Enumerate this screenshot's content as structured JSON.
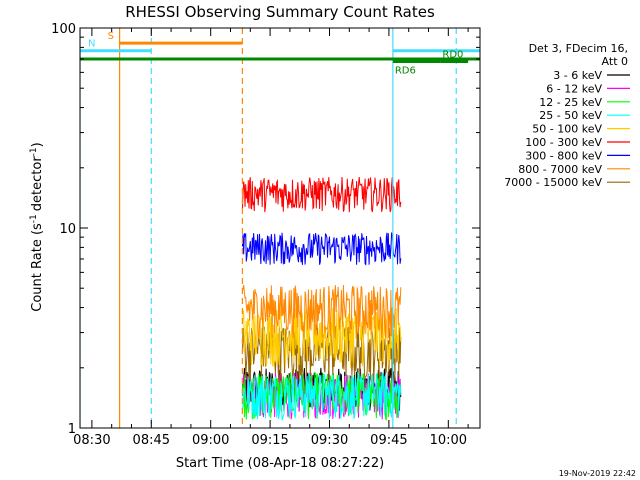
{
  "chart_data": {
    "type": "line",
    "title": "RHESSI Observing Summary Count Rates",
    "xlabel": "Start Time (08-Apr-18 08:27:22)",
    "ylabel": "Count Rate (s",
    "ylabel_sup": "-1",
    "ylabel_rest": "detector",
    "ylabel_end": ")",
    "yscale": "log",
    "ylim": [
      1,
      100
    ],
    "xlim": [
      "08:27",
      "10:08"
    ],
    "x_ticks": [
      "08:30",
      "08:45",
      "09:00",
      "09:15",
      "09:30",
      "09:45",
      "10:00"
    ],
    "y_ticks": [
      "1",
      "10",
      "100"
    ],
    "legend_position": "top-right",
    "legend_title": [
      "Det 3, FDecim 16,",
      "Att 0"
    ],
    "series": [
      {
        "name": "3 - 6 keV",
        "color": "#000000",
        "level": 1.6,
        "spread": 0.4,
        "start": "09:08",
        "end": "09:48"
      },
      {
        "name": "6 - 12 keV",
        "color": "#ff00ff",
        "level": 1.5,
        "spread": 0.4,
        "start": "09:08",
        "end": "09:48"
      },
      {
        "name": "12 - 25 keV",
        "color": "#00ff00",
        "level": 1.5,
        "spread": 0.4,
        "start": "09:08",
        "end": "09:48"
      },
      {
        "name": "25 - 50 keV",
        "color": "#00ffff",
        "level": 1.5,
        "spread": 0.4,
        "start": "09:08",
        "end": "09:48"
      },
      {
        "name": "50 - 100 keV",
        "color": "#ffcc00",
        "level": 3.0,
        "spread": 1.0,
        "start": "09:08",
        "end": "09:48"
      },
      {
        "name": "100 - 300 keV",
        "color": "#ff0000",
        "level": 15,
        "spread": 3,
        "start": "09:08",
        "end": "09:48"
      },
      {
        "name": "300 - 800 keV",
        "color": "#0000ff",
        "level": 8,
        "spread": 1.5,
        "start": "09:08",
        "end": "09:48"
      },
      {
        "name": "800 - 7000 keV",
        "color": "#ff8800",
        "level": 4,
        "spread": 1.2,
        "start": "09:08",
        "end": "09:48"
      },
      {
        "name": "7000 - 15000 keV",
        "color": "#996600",
        "level": 2.5,
        "spread": 0.8,
        "start": "09:08",
        "end": "09:48"
      }
    ],
    "intervals": [
      {
        "label": "S",
        "color": "#ff8800",
        "start": "08:37",
        "end": "09:08",
        "y": 84
      },
      {
        "label": "N",
        "color": "#44ddff",
        "start": "08:27",
        "end": "08:45",
        "y": 77
      },
      {
        "label": "",
        "color": "#44ddff",
        "start": "09:46",
        "end": "10:08",
        "y": 77
      },
      {
        "label": "",
        "color": "#008800",
        "start": "08:27",
        "end": "10:08",
        "y": 70
      },
      {
        "label": "RD0",
        "color": "#008800",
        "start": "09:58",
        "end": "10:05",
        "y": 68
      },
      {
        "label": "RD6",
        "color": "#008800",
        "start": "09:46",
        "end": "09:58",
        "y": 68
      }
    ],
    "vlines": [
      {
        "t": "08:27",
        "color": "#44ddff",
        "dashed": false
      },
      {
        "t": "08:37",
        "color": "#ff8800",
        "dashed": false
      },
      {
        "t": "08:45",
        "color": "#44ddff",
        "dashed": true
      },
      {
        "t": "09:08",
        "color": "#ff8800",
        "dashed": true
      },
      {
        "t": "09:46",
        "color": "#44ddff",
        "dashed": false
      },
      {
        "t": "10:02",
        "color": "#44ddff",
        "dashed": true
      }
    ],
    "footer_date": "19-Nov-2019 22:42"
  }
}
